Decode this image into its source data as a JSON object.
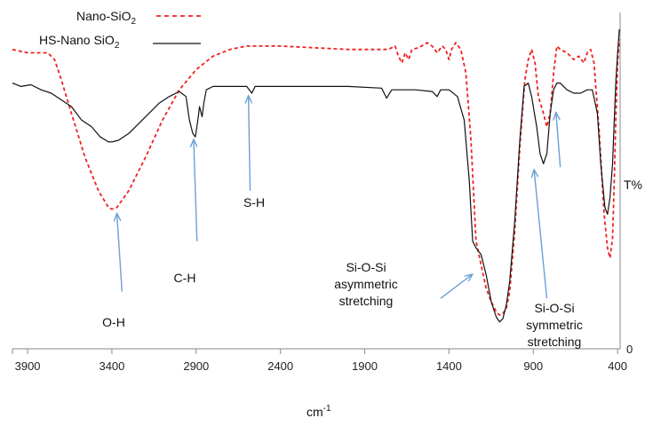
{
  "chart_data": {
    "type": "line",
    "title": "",
    "xlabel": "cm",
    "xlabel_sup": "-1",
    "ylabel": "T%",
    "y_zero_label": "0",
    "xlim": [
      3990,
      385
    ],
    "x_reversed": true,
    "x_ticks": [
      3900,
      3400,
      2900,
      2400,
      1900,
      1400,
      900,
      400
    ],
    "ylim": [
      0,
      100
    ],
    "grid": false,
    "legend": {
      "placement": "top-left"
    },
    "series": [
      {
        "name": "Nano-SiO",
        "name_sub": "2",
        "color": "#ee2222",
        "dash": "dashed",
        "points": [
          [
            3990,
            89
          ],
          [
            3900,
            88
          ],
          [
            3850,
            88
          ],
          [
            3780,
            88
          ],
          [
            3740,
            86
          ],
          [
            3700,
            80
          ],
          [
            3640,
            70
          ],
          [
            3560,
            57
          ],
          [
            3480,
            47
          ],
          [
            3420,
            42
          ],
          [
            3400,
            41.5
          ],
          [
            3370,
            42
          ],
          [
            3300,
            47
          ],
          [
            3200,
            57
          ],
          [
            3100,
            68
          ],
          [
            3000,
            77
          ],
          [
            2900,
            83
          ],
          [
            2800,
            87
          ],
          [
            2700,
            89
          ],
          [
            2600,
            90
          ],
          [
            2400,
            90
          ],
          [
            2200,
            89.5
          ],
          [
            2000,
            89
          ],
          [
            1880,
            89
          ],
          [
            1760,
            89
          ],
          [
            1720,
            90
          ],
          [
            1700,
            87
          ],
          [
            1680,
            85
          ],
          [
            1660,
            88
          ],
          [
            1640,
            86
          ],
          [
            1620,
            89
          ],
          [
            1580,
            89.5
          ],
          [
            1530,
            91
          ],
          [
            1500,
            90
          ],
          [
            1470,
            88
          ],
          [
            1440,
            90
          ],
          [
            1420,
            89
          ],
          [
            1400,
            86
          ],
          [
            1385,
            89
          ],
          [
            1360,
            91
          ],
          [
            1330,
            89
          ],
          [
            1300,
            82
          ],
          [
            1270,
            62
          ],
          [
            1240,
            32
          ],
          [
            1210,
            25
          ],
          [
            1180,
            18
          ],
          [
            1150,
            14
          ],
          [
            1120,
            11
          ],
          [
            1100,
            10
          ],
          [
            1080,
            10.5
          ],
          [
            1060,
            12
          ],
          [
            1040,
            17
          ],
          [
            1010,
            35
          ],
          [
            980,
            60
          ],
          [
            950,
            80
          ],
          [
            930,
            86
          ],
          [
            910,
            89
          ],
          [
            890,
            85
          ],
          [
            870,
            75
          ],
          [
            840,
            70
          ],
          [
            820,
            66
          ],
          [
            800,
            70
          ],
          [
            780,
            82
          ],
          [
            760,
            90
          ],
          [
            740,
            89
          ],
          [
            700,
            88
          ],
          [
            660,
            86
          ],
          [
            630,
            87
          ],
          [
            600,
            85
          ],
          [
            580,
            88
          ],
          [
            560,
            89
          ],
          [
            540,
            85
          ],
          [
            510,
            65
          ],
          [
            480,
            40
          ],
          [
            460,
            30
          ],
          [
            445,
            27
          ],
          [
            430,
            33
          ],
          [
            420,
            50
          ],
          [
            410,
            70
          ],
          [
            400,
            85
          ],
          [
            390,
            92
          ]
        ]
      },
      {
        "name": "HS-Nano SiO",
        "name_sub": "2",
        "color": "#111111",
        "dash": "solid",
        "points": [
          [
            3990,
            79
          ],
          [
            3940,
            78
          ],
          [
            3880,
            78.5
          ],
          [
            3820,
            77
          ],
          [
            3760,
            76
          ],
          [
            3700,
            74
          ],
          [
            3640,
            72
          ],
          [
            3580,
            68
          ],
          [
            3520,
            66
          ],
          [
            3470,
            63
          ],
          [
            3420,
            61.5
          ],
          [
            3400,
            61.5
          ],
          [
            3360,
            62
          ],
          [
            3300,
            64
          ],
          [
            3240,
            67
          ],
          [
            3180,
            70
          ],
          [
            3120,
            73
          ],
          [
            3060,
            75
          ],
          [
            3000,
            76.5
          ],
          [
            2960,
            75
          ],
          [
            2940,
            68
          ],
          [
            2920,
            64
          ],
          [
            2905,
            63
          ],
          [
            2890,
            68
          ],
          [
            2880,
            72
          ],
          [
            2865,
            69
          ],
          [
            2855,
            73
          ],
          [
            2840,
            77
          ],
          [
            2800,
            78
          ],
          [
            2700,
            78
          ],
          [
            2600,
            78
          ],
          [
            2570,
            76
          ],
          [
            2550,
            78
          ],
          [
            2400,
            78
          ],
          [
            2200,
            78
          ],
          [
            2000,
            78
          ],
          [
            1800,
            77.5
          ],
          [
            1770,
            74.5
          ],
          [
            1740,
            77
          ],
          [
            1600,
            77
          ],
          [
            1500,
            76.5
          ],
          [
            1470,
            75
          ],
          [
            1450,
            77
          ],
          [
            1400,
            77
          ],
          [
            1350,
            75
          ],
          [
            1310,
            68
          ],
          [
            1280,
            50
          ],
          [
            1260,
            32
          ],
          [
            1240,
            30
          ],
          [
            1210,
            28
          ],
          [
            1180,
            22
          ],
          [
            1150,
            14
          ],
          [
            1120,
            9.5
          ],
          [
            1100,
            8
          ],
          [
            1080,
            9
          ],
          [
            1060,
            13
          ],
          [
            1040,
            20
          ],
          [
            1010,
            38
          ],
          [
            980,
            62
          ],
          [
            955,
            78
          ],
          [
            930,
            79
          ],
          [
            910,
            75
          ],
          [
            880,
            66
          ],
          [
            860,
            58
          ],
          [
            840,
            55
          ],
          [
            820,
            58
          ],
          [
            800,
            70
          ],
          [
            780,
            77
          ],
          [
            760,
            79
          ],
          [
            740,
            79
          ],
          [
            700,
            77
          ],
          [
            660,
            76
          ],
          [
            620,
            76
          ],
          [
            580,
            77
          ],
          [
            550,
            77
          ],
          [
            520,
            70
          ],
          [
            500,
            55
          ],
          [
            475,
            42
          ],
          [
            460,
            40
          ],
          [
            445,
            45
          ],
          [
            430,
            55
          ],
          [
            420,
            68
          ],
          [
            410,
            80
          ],
          [
            400,
            88
          ],
          [
            390,
            95
          ]
        ]
      }
    ],
    "annotations": [
      {
        "id": "oh",
        "lines": [
          "O-H"
        ],
        "arrow_from": [
          3340,
          17
        ],
        "arrow_to": [
          3370,
          40
        ]
      },
      {
        "id": "ch",
        "lines": [
          "C-H"
        ],
        "arrow_from": [
          2895,
          32
        ],
        "arrow_to": [
          2915,
          62
        ]
      },
      {
        "id": "sh",
        "lines": [
          "S-H"
        ],
        "arrow_from": [
          2580,
          47
        ],
        "arrow_to": [
          2590,
          75
        ]
      },
      {
        "id": "asym",
        "lines": [
          "Si-O-Si",
          "asymmetric",
          "stretching"
        ],
        "arrow_from": [
          1450,
          15
        ],
        "arrow_to": [
          1265,
          22
        ]
      },
      {
        "id": "sym",
        "lines": [
          "Si-O-Si",
          "symmetric",
          "stretching"
        ],
        "arrow_from": [
          820,
          15
        ],
        "arrow_to": [
          895,
          53
        ]
      },
      {
        "id": "extra",
        "lines": [],
        "arrow_from": [
          740,
          54
        ],
        "arrow_to": [
          765,
          70
        ]
      }
    ]
  }
}
